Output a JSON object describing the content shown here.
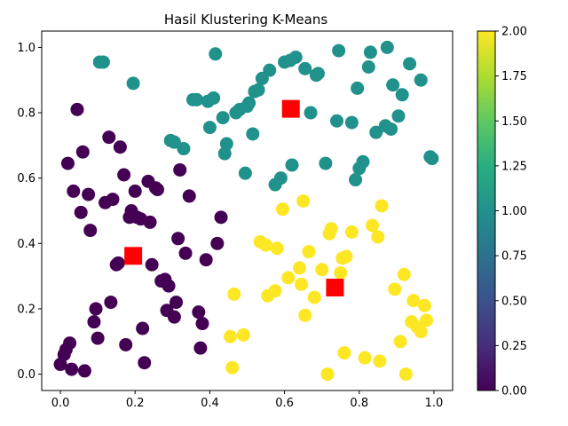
{
  "chart_data": {
    "type": "scatter",
    "title": "Hasil Klustering K-Means",
    "xlabel": "",
    "ylabel": "",
    "xlim": [
      -0.05,
      1.05
    ],
    "ylim": [
      -0.05,
      1.05
    ],
    "xticks": [
      "0.0",
      "0.2",
      "0.4",
      "0.6",
      "0.8",
      "1.0"
    ],
    "yticks": [
      "0.0",
      "0.2",
      "0.4",
      "0.6",
      "0.8",
      "1.0"
    ],
    "grid": false,
    "colormap": "viridis",
    "colorbar": {
      "range": [
        0,
        2
      ],
      "ticks": [
        "0.00",
        "0.25",
        "0.50",
        "0.75",
        "1.00",
        "1.25",
        "1.50",
        "1.75",
        "2.00"
      ]
    },
    "cluster_colors": {
      "0": "#440154",
      "1": "#21918c",
      "2": "#fde725"
    },
    "centroid_color": "#ff0000",
    "centroids": [
      {
        "x": 0.195,
        "y": 0.362,
        "label": 0
      },
      {
        "x": 0.617,
        "y": 0.812,
        "label": 1
      },
      {
        "x": 0.735,
        "y": 0.265,
        "label": 2
      }
    ],
    "points": [
      {
        "x": 0.0,
        "y": 0.03,
        "label": 0
      },
      {
        "x": 0.01,
        "y": 0.06,
        "label": 0
      },
      {
        "x": 0.015,
        "y": 0.075,
        "label": 0
      },
      {
        "x": 0.025,
        "y": 0.095,
        "label": 0
      },
      {
        "x": 0.03,
        "y": 0.015,
        "label": 0
      },
      {
        "x": 0.065,
        "y": 0.01,
        "label": 0
      },
      {
        "x": 0.09,
        "y": 0.16,
        "label": 0
      },
      {
        "x": 0.095,
        "y": 0.2,
        "label": 0
      },
      {
        "x": 0.1,
        "y": 0.11,
        "label": 0
      },
      {
        "x": 0.135,
        "y": 0.22,
        "label": 0
      },
      {
        "x": 0.15,
        "y": 0.335,
        "label": 0
      },
      {
        "x": 0.155,
        "y": 0.34,
        "label": 0
      },
      {
        "x": 0.175,
        "y": 0.09,
        "label": 0
      },
      {
        "x": 0.185,
        "y": 0.48,
        "label": 0
      },
      {
        "x": 0.19,
        "y": 0.5,
        "label": 0
      },
      {
        "x": 0.2,
        "y": 0.56,
        "label": 0
      },
      {
        "x": 0.205,
        "y": 0.48,
        "label": 0
      },
      {
        "x": 0.215,
        "y": 0.475,
        "label": 0
      },
      {
        "x": 0.22,
        "y": 0.14,
        "label": 0
      },
      {
        "x": 0.225,
        "y": 0.035,
        "label": 0
      },
      {
        "x": 0.235,
        "y": 0.59,
        "label": 0
      },
      {
        "x": 0.24,
        "y": 0.465,
        "label": 0
      },
      {
        "x": 0.245,
        "y": 0.335,
        "label": 0
      },
      {
        "x": 0.255,
        "y": 0.57,
        "label": 0
      },
      {
        "x": 0.26,
        "y": 0.565,
        "label": 0
      },
      {
        "x": 0.27,
        "y": 0.285,
        "label": 0
      },
      {
        "x": 0.28,
        "y": 0.29,
        "label": 0
      },
      {
        "x": 0.285,
        "y": 0.195,
        "label": 0
      },
      {
        "x": 0.29,
        "y": 0.27,
        "label": 0
      },
      {
        "x": 0.305,
        "y": 0.175,
        "label": 0
      },
      {
        "x": 0.31,
        "y": 0.22,
        "label": 0
      },
      {
        "x": 0.315,
        "y": 0.415,
        "label": 0
      },
      {
        "x": 0.32,
        "y": 0.625,
        "label": 0
      },
      {
        "x": 0.335,
        "y": 0.37,
        "label": 0
      },
      {
        "x": 0.345,
        "y": 0.545,
        "label": 0
      },
      {
        "x": 0.37,
        "y": 0.19,
        "label": 0
      },
      {
        "x": 0.375,
        "y": 0.08,
        "label": 0
      },
      {
        "x": 0.38,
        "y": 0.155,
        "label": 0
      },
      {
        "x": 0.39,
        "y": 0.35,
        "label": 0
      },
      {
        "x": 0.42,
        "y": 0.4,
        "label": 0
      },
      {
        "x": 0.43,
        "y": 0.48,
        "label": 0
      },
      {
        "x": 0.02,
        "y": 0.645,
        "label": 0
      },
      {
        "x": 0.035,
        "y": 0.56,
        "label": 0
      },
      {
        "x": 0.045,
        "y": 0.81,
        "label": 0
      },
      {
        "x": 0.055,
        "y": 0.495,
        "label": 0
      },
      {
        "x": 0.06,
        "y": 0.68,
        "label": 0
      },
      {
        "x": 0.075,
        "y": 0.55,
        "label": 0
      },
      {
        "x": 0.08,
        "y": 0.44,
        "label": 0
      },
      {
        "x": 0.12,
        "y": 0.525,
        "label": 0
      },
      {
        "x": 0.13,
        "y": 0.725,
        "label": 0
      },
      {
        "x": 0.14,
        "y": 0.535,
        "label": 0
      },
      {
        "x": 0.16,
        "y": 0.695,
        "label": 0
      },
      {
        "x": 0.17,
        "y": 0.61,
        "label": 0
      },
      {
        "x": 0.105,
        "y": 0.955,
        "label": 1
      },
      {
        "x": 0.115,
        "y": 0.955,
        "label": 1
      },
      {
        "x": 0.195,
        "y": 0.89,
        "label": 1
      },
      {
        "x": 0.295,
        "y": 0.715,
        "label": 1
      },
      {
        "x": 0.305,
        "y": 0.71,
        "label": 1
      },
      {
        "x": 0.33,
        "y": 0.69,
        "label": 1
      },
      {
        "x": 0.355,
        "y": 0.84,
        "label": 1
      },
      {
        "x": 0.365,
        "y": 0.84,
        "label": 1
      },
      {
        "x": 0.395,
        "y": 0.835,
        "label": 1
      },
      {
        "x": 0.4,
        "y": 0.755,
        "label": 1
      },
      {
        "x": 0.41,
        "y": 0.845,
        "label": 1
      },
      {
        "x": 0.415,
        "y": 0.98,
        "label": 1
      },
      {
        "x": 0.435,
        "y": 0.785,
        "label": 1
      },
      {
        "x": 0.44,
        "y": 0.675,
        "label": 1
      },
      {
        "x": 0.445,
        "y": 0.705,
        "label": 1
      },
      {
        "x": 0.47,
        "y": 0.8,
        "label": 1
      },
      {
        "x": 0.48,
        "y": 0.81,
        "label": 1
      },
      {
        "x": 0.495,
        "y": 0.615,
        "label": 1
      },
      {
        "x": 0.5,
        "y": 0.82,
        "label": 1
      },
      {
        "x": 0.505,
        "y": 0.83,
        "label": 1
      },
      {
        "x": 0.515,
        "y": 0.735,
        "label": 1
      },
      {
        "x": 0.52,
        "y": 0.865,
        "label": 1
      },
      {
        "x": 0.53,
        "y": 0.87,
        "label": 1
      },
      {
        "x": 0.54,
        "y": 0.905,
        "label": 1
      },
      {
        "x": 0.56,
        "y": 0.93,
        "label": 1
      },
      {
        "x": 0.575,
        "y": 0.58,
        "label": 1
      },
      {
        "x": 0.59,
        "y": 0.6,
        "label": 1
      },
      {
        "x": 0.6,
        "y": 0.955,
        "label": 1
      },
      {
        "x": 0.615,
        "y": 0.96,
        "label": 1
      },
      {
        "x": 0.62,
        "y": 0.64,
        "label": 1
      },
      {
        "x": 0.63,
        "y": 0.97,
        "label": 1
      },
      {
        "x": 0.655,
        "y": 0.935,
        "label": 1
      },
      {
        "x": 0.67,
        "y": 0.8,
        "label": 1
      },
      {
        "x": 0.685,
        "y": 0.915,
        "label": 1
      },
      {
        "x": 0.69,
        "y": 0.92,
        "label": 1
      },
      {
        "x": 0.71,
        "y": 0.645,
        "label": 1
      },
      {
        "x": 0.74,
        "y": 0.775,
        "label": 1
      },
      {
        "x": 0.745,
        "y": 0.99,
        "label": 1
      },
      {
        "x": 0.78,
        "y": 0.77,
        "label": 1
      },
      {
        "x": 0.79,
        "y": 0.595,
        "label": 1
      },
      {
        "x": 0.795,
        "y": 0.875,
        "label": 1
      },
      {
        "x": 0.8,
        "y": 0.63,
        "label": 1
      },
      {
        "x": 0.81,
        "y": 0.65,
        "label": 1
      },
      {
        "x": 0.825,
        "y": 0.94,
        "label": 1
      },
      {
        "x": 0.83,
        "y": 0.985,
        "label": 1
      },
      {
        "x": 0.845,
        "y": 0.74,
        "label": 1
      },
      {
        "x": 0.87,
        "y": 0.76,
        "label": 1
      },
      {
        "x": 0.875,
        "y": 1.0,
        "label": 1
      },
      {
        "x": 0.885,
        "y": 0.75,
        "label": 1
      },
      {
        "x": 0.89,
        "y": 0.885,
        "label": 1
      },
      {
        "x": 0.905,
        "y": 0.79,
        "label": 1
      },
      {
        "x": 0.915,
        "y": 0.855,
        "label": 1
      },
      {
        "x": 0.935,
        "y": 0.95,
        "label": 1
      },
      {
        "x": 0.965,
        "y": 0.9,
        "label": 1
      },
      {
        "x": 0.99,
        "y": 0.665,
        "label": 1
      },
      {
        "x": 0.995,
        "y": 0.66,
        "label": 1
      },
      {
        "x": 0.455,
        "y": 0.115,
        "label": 2
      },
      {
        "x": 0.46,
        "y": 0.02,
        "label": 2
      },
      {
        "x": 0.465,
        "y": 0.245,
        "label": 2
      },
      {
        "x": 0.49,
        "y": 0.12,
        "label": 2
      },
      {
        "x": 0.535,
        "y": 0.405,
        "label": 2
      },
      {
        "x": 0.55,
        "y": 0.395,
        "label": 2
      },
      {
        "x": 0.555,
        "y": 0.24,
        "label": 2
      },
      {
        "x": 0.575,
        "y": 0.255,
        "label": 2
      },
      {
        "x": 0.58,
        "y": 0.385,
        "label": 2
      },
      {
        "x": 0.595,
        "y": 0.505,
        "label": 2
      },
      {
        "x": 0.61,
        "y": 0.295,
        "label": 2
      },
      {
        "x": 0.64,
        "y": 0.325,
        "label": 2
      },
      {
        "x": 0.645,
        "y": 0.275,
        "label": 2
      },
      {
        "x": 0.65,
        "y": 0.53,
        "label": 2
      },
      {
        "x": 0.655,
        "y": 0.18,
        "label": 2
      },
      {
        "x": 0.665,
        "y": 0.375,
        "label": 2
      },
      {
        "x": 0.68,
        "y": 0.235,
        "label": 2
      },
      {
        "x": 0.7,
        "y": 0.32,
        "label": 2
      },
      {
        "x": 0.715,
        "y": 0.0,
        "label": 2
      },
      {
        "x": 0.72,
        "y": 0.43,
        "label": 2
      },
      {
        "x": 0.725,
        "y": 0.445,
        "label": 2
      },
      {
        "x": 0.75,
        "y": 0.31,
        "label": 2
      },
      {
        "x": 0.755,
        "y": 0.355,
        "label": 2
      },
      {
        "x": 0.76,
        "y": 0.065,
        "label": 2
      },
      {
        "x": 0.765,
        "y": 0.36,
        "label": 2
      },
      {
        "x": 0.78,
        "y": 0.435,
        "label": 2
      },
      {
        "x": 0.815,
        "y": 0.05,
        "label": 2
      },
      {
        "x": 0.835,
        "y": 0.455,
        "label": 2
      },
      {
        "x": 0.85,
        "y": 0.42,
        "label": 2
      },
      {
        "x": 0.855,
        "y": 0.04,
        "label": 2
      },
      {
        "x": 0.86,
        "y": 0.515,
        "label": 2
      },
      {
        "x": 0.895,
        "y": 0.26,
        "label": 2
      },
      {
        "x": 0.91,
        "y": 0.1,
        "label": 2
      },
      {
        "x": 0.92,
        "y": 0.305,
        "label": 2
      },
      {
        "x": 0.925,
        "y": 0.0,
        "label": 2
      },
      {
        "x": 0.94,
        "y": 0.16,
        "label": 2
      },
      {
        "x": 0.945,
        "y": 0.225,
        "label": 2
      },
      {
        "x": 0.955,
        "y": 0.145,
        "label": 2
      },
      {
        "x": 0.965,
        "y": 0.13,
        "label": 2
      },
      {
        "x": 0.975,
        "y": 0.21,
        "label": 2
      },
      {
        "x": 0.98,
        "y": 0.165,
        "label": 2
      }
    ]
  }
}
